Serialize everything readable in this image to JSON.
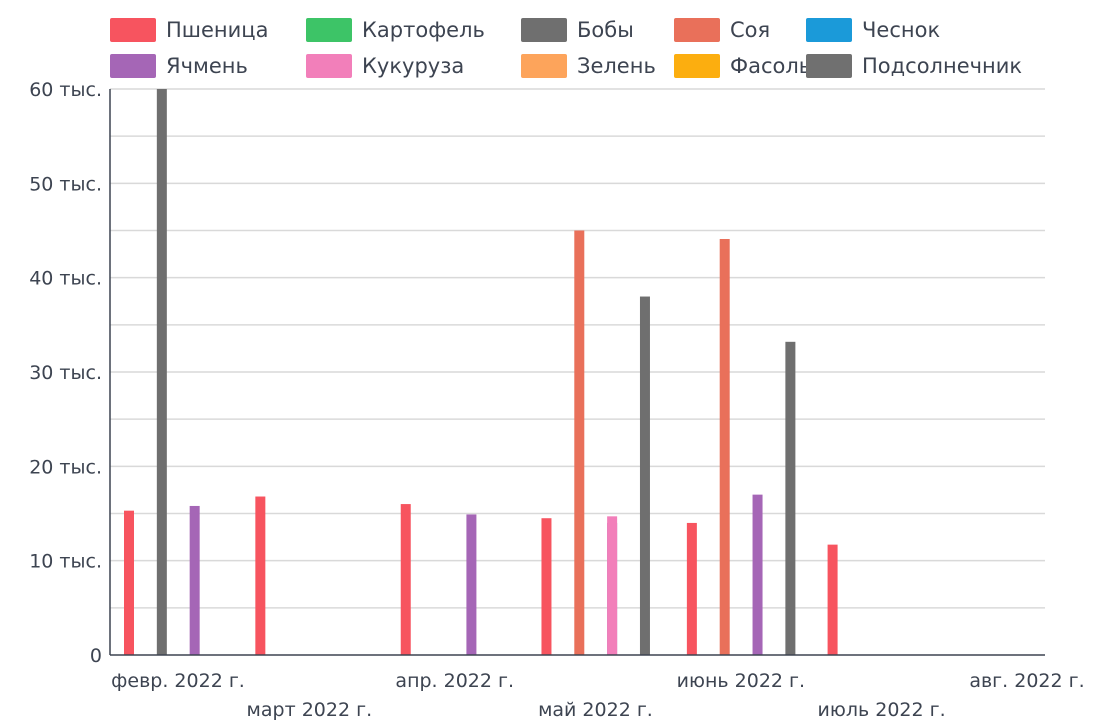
{
  "chart_data": {
    "type": "bar",
    "title": "",
    "xlabel": "",
    "ylabel": "",
    "ylim": [
      0,
      60000
    ],
    "y_ticks": [
      {
        "value": 0,
        "label": "0"
      },
      {
        "value": 10000,
        "label": "10 тыс."
      },
      {
        "value": 20000,
        "label": "20 тыс."
      },
      {
        "value": 30000,
        "label": "30 тыс."
      },
      {
        "value": 40000,
        "label": "40 тыс."
      },
      {
        "value": 50000,
        "label": "50 тыс."
      },
      {
        "value": 60000,
        "label": "60 тыс."
      }
    ],
    "x_ticks": [
      {
        "date": "2022-02-01",
        "label": "февр. 2022 г."
      },
      {
        "date": "2022-03-01",
        "label": "март 2022 г."
      },
      {
        "date": "2022-04-01",
        "label": "апр. 2022 г."
      },
      {
        "date": "2022-05-01",
        "label": "май 2022 г."
      },
      {
        "date": "2022-06-01",
        "label": "июнь 2022 г."
      },
      {
        "date": "2022-07-01",
        "label": "июль 2022 г."
      },
      {
        "date": "2022-08-01",
        "label": "авг. 2022 г."
      }
    ],
    "grid": true,
    "legend_position": "top",
    "series": [
      {
        "name": "Пшеница",
        "color": "#f7545f",
        "points": [
          {
            "x": "2022-02-01",
            "y": 15300
          },
          {
            "x": "2022-03-01",
            "y": 16800
          },
          {
            "x": "2022-04-01",
            "y": 16000
          },
          {
            "x": "2022-05-01",
            "y": 14500
          },
          {
            "x": "2022-06-01",
            "y": 14000
          },
          {
            "x": "2022-07-01",
            "y": 11700
          }
        ]
      },
      {
        "name": "Ячмень",
        "color": "#a566b6",
        "points": [
          {
            "x": "2022-02-15",
            "y": 15800
          },
          {
            "x": "2022-04-15",
            "y": 14900
          },
          {
            "x": "2022-05-15",
            "y": 14000
          },
          {
            "x": "2022-06-15",
            "y": 17000
          }
        ]
      },
      {
        "name": "Картофель",
        "color": "#3dc467",
        "points": []
      },
      {
        "name": "Кукуруза",
        "color": "#f27fba",
        "points": [
          {
            "x": "2022-05-15",
            "y": 14700
          }
        ]
      },
      {
        "name": "Бобы",
        "color": "#6f6f6f",
        "points": [
          {
            "x": "2022-02-08",
            "y": 60000
          },
          {
            "x": "2022-05-22",
            "y": 38000
          },
          {
            "x": "2022-06-22",
            "y": 33200
          }
        ]
      },
      {
        "name": "Зелень",
        "color": "#fda45b",
        "points": []
      },
      {
        "name": "Соя",
        "color": "#e9705a",
        "points": [
          {
            "x": "2022-05-08",
            "y": 45000
          },
          {
            "x": "2022-06-08",
            "y": 44100
          }
        ]
      },
      {
        "name": "Фасоль",
        "color": "#fcae0f",
        "points": []
      },
      {
        "name": "Чеснок",
        "color": "#1b9ad9",
        "points": []
      },
      {
        "name": "Подсолнечник",
        "color": "#707070",
        "points": []
      }
    ]
  }
}
